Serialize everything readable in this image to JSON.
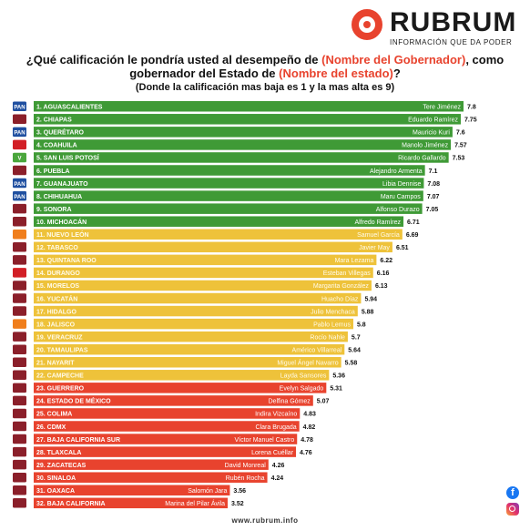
{
  "brand": {
    "name": "RUBRUM",
    "tagline": "INFORMACIÓN QUE DA PODER",
    "website": "www.rubrum.info"
  },
  "header": {
    "q_part1": "¿Qué calificación le pondría usted al desempeño de ",
    "q_hl1": "(Nombre del Gobernador)",
    "q_part2": ", como",
    "q_part3": "gobernador del Estado de ",
    "q_hl2": "(Nombre del estado)",
    "q_part4": "?",
    "subtitle": "(Donde la calificación mas baja es 1 y la mas alta es 9)"
  },
  "icons": {
    "facebook": "facebook-icon",
    "instagram": "instagram-icon"
  },
  "colors": {
    "green": "#3f9a36",
    "yellow": "#eec23a",
    "red": "#e8432e",
    "pan": "#1f4fa0",
    "morena": "#8b1f2a",
    "pri": "#d21f26",
    "mc": "#f07e1c",
    "pvem": "#4aa63c"
  },
  "chart_data": {
    "type": "bar",
    "orientation": "horizontal",
    "categories": [
      "1. AGUASCALIENTES",
      "2. CHIAPAS",
      "3. QUERÉTARO",
      "4. COAHUILA",
      "5. SAN LUIS POTOSÍ",
      "6. PUEBLA",
      "7. GUANAJUATO",
      "8. CHIHUAHUA",
      "9. SONORA",
      "10. MICHOACÁN",
      "11. NUEVO LEÓN",
      "12. TABASCO",
      "13. QUINTANA ROO",
      "14. DURANGO",
      "15. MORELOS",
      "16. YUCATÁN",
      "17. HIDALGO",
      "18. JALISCO",
      "19. VERACRUZ",
      "20. TAMAULIPAS",
      "21. NAYARIT",
      "22. CAMPECHE",
      "23. GUERRERO",
      "24. ESTADO DE MÉXICO",
      "25. COLIMA",
      "26. CDMX",
      "27. BAJA CALIFORNIA SUR",
      "28. TLAXCALA",
      "29. ZACATECAS",
      "30. SINALOA",
      "31. OAXACA",
      "32. BAJA CALIFORNIA"
    ],
    "governors": [
      "Tere Jiménez",
      "Eduardo Ramírez",
      "Mauricio Kuri",
      "Manolo Jiménez",
      "Ricardo Gallardo",
      "Alejandro Armenta",
      "Libia Dennise",
      "Maru Campos",
      "Alfonso Durazo",
      "Alfredo Ramírez",
      "Samuel García",
      "Javier May",
      "Mara Lezama",
      "Esteban Villegas",
      "Margarita González",
      "Huacho Díaz",
      "Julio Menchaca",
      "Pablo Lemus",
      "Rocío Nahle",
      "Américo Villarreal",
      "Miguel Ángel Navarro",
      "Layda Sansores",
      "Evelyn Salgado",
      "Delfina Gómez",
      "Indira Vizcaíno",
      "Clara Brugada",
      "Víctor Manuel Castro",
      "Lorena Cuéllar",
      "David Monreal",
      "Rubén Rocha",
      "Salomón Jara",
      "Marina del Pilar Ávila"
    ],
    "values": [
      7.8,
      7.75,
      7.6,
      7.57,
      7.53,
      7.1,
      7.08,
      7.07,
      7.05,
      6.71,
      6.69,
      6.51,
      6.22,
      6.16,
      6.13,
      5.94,
      5.88,
      5.8,
      5.7,
      5.64,
      5.58,
      5.36,
      5.31,
      5.07,
      4.83,
      4.82,
      4.78,
      4.76,
      4.26,
      4.24,
      3.56,
      3.52
    ],
    "tier": [
      "green",
      "green",
      "green",
      "green",
      "green",
      "green",
      "green",
      "green",
      "green",
      "green",
      "yellow",
      "yellow",
      "yellow",
      "yellow",
      "yellow",
      "yellow",
      "yellow",
      "yellow",
      "yellow",
      "yellow",
      "yellow",
      "yellow",
      "red",
      "red",
      "red",
      "red",
      "red",
      "red",
      "red",
      "red",
      "red",
      "red"
    ],
    "party_icon": [
      "pan",
      "morena",
      "pan",
      "pri",
      "pvem",
      "morena",
      "pan",
      "pan",
      "morena",
      "morena",
      "mc",
      "morena",
      "morena",
      "pri",
      "morena",
      "morena",
      "morena",
      "mc",
      "morena",
      "morena",
      "morena",
      "morena",
      "morena",
      "morena",
      "morena",
      "morena",
      "morena",
      "morena",
      "morena",
      "morena",
      "morena",
      "morena"
    ],
    "party_label": {
      "pan": "PAN",
      "pvem": "V"
    },
    "xlim": [
      0,
      9
    ],
    "grid": false,
    "legend": "none"
  }
}
